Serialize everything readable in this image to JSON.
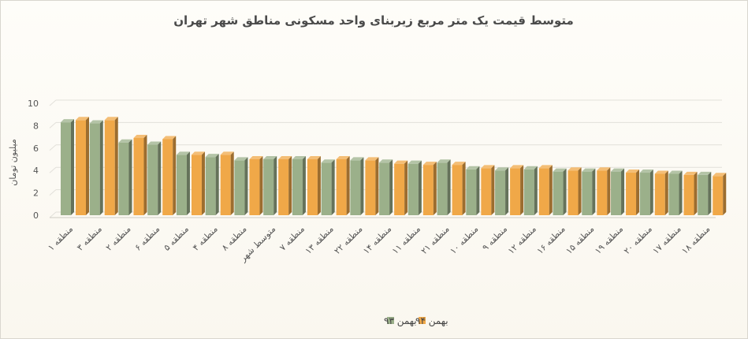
{
  "chart_data": {
    "type": "bar",
    "title": "متوسط قیمت یک متر مربع زیربنای واحد مسکونی مناطق شهر تهران",
    "ylabel": "میلیون تومان",
    "xlabel": "",
    "ylim": [
      0,
      10
    ],
    "yticks": [
      0,
      2,
      4,
      6,
      8,
      10
    ],
    "grid": true,
    "legend_position": "bottom",
    "categories": [
      "منطقه ۱",
      "منطقه ۳",
      "منطقه ۲",
      "منطقه ۶",
      "منطقه ۵",
      "منطقه ۴",
      "منطقه ۸",
      "متوسط شهر",
      "منطقه ۷",
      "منطقه ۱۳",
      "منطقه ۲۲",
      "منطقه ۱۴",
      "منطقه ۱۱",
      "منطقه ۲۱",
      "منطقه ۱۰",
      "منطقه ۹",
      "منطقه ۱۲",
      "منطقه ۱۶",
      "منطقه ۱۵",
      "منطقه ۱۹",
      "منطقه ۲۰",
      "منطقه ۱۷",
      "منطقه ۱۸"
    ],
    "series": [
      {
        "name": "بهمن ۹۳",
        "color": "#9bb08a",
        "values": [
          8.3,
          8.2,
          6.5,
          6.3,
          5.4,
          5.2,
          4.9,
          5.0,
          5.0,
          4.7,
          4.9,
          4.7,
          4.6,
          4.7,
          4.1,
          4.0,
          4.1,
          3.9,
          3.9,
          3.9,
          3.8,
          3.7,
          3.6
        ]
      },
      {
        "name": "بهمن ۹۴",
        "color": "#f0a848",
        "values": [
          8.5,
          8.5,
          6.9,
          6.8,
          5.4,
          5.4,
          5.0,
          5.0,
          5.0,
          5.0,
          4.9,
          4.6,
          4.5,
          4.5,
          4.2,
          4.2,
          4.2,
          4.0,
          4.0,
          3.8,
          3.7,
          3.6,
          3.5
        ]
      }
    ]
  }
}
